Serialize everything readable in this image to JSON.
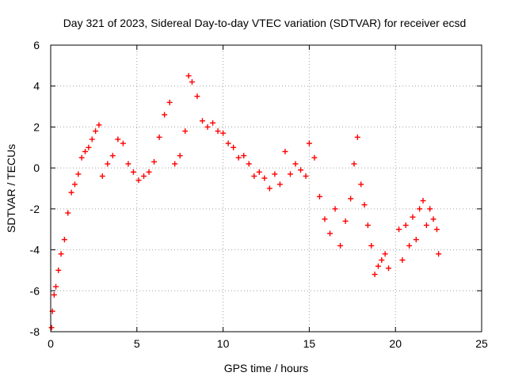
{
  "chart_data": {
    "type": "scatter",
    "title": "Day 321 of 2023, Sidereal Day-to-day VTEC variation (SDTVAR) for receiver ecsd",
    "xlabel": "GPS time / hours",
    "ylabel": "SDTVAR / TECUs",
    "xlim": [
      0,
      25
    ],
    "ylim": [
      -8,
      6
    ],
    "xticks": [
      0,
      5,
      10,
      15,
      20,
      25
    ],
    "yticks": [
      -8,
      -6,
      -4,
      -2,
      0,
      2,
      4,
      6
    ],
    "grid": true,
    "marker": "+",
    "series_color": "#ff0000",
    "series": [
      {
        "name": "SDTVAR",
        "x": [
          0.05,
          0.1,
          0.2,
          0.3,
          0.45,
          0.6,
          0.8,
          1.0,
          1.2,
          1.4,
          1.6,
          1.8,
          2.0,
          2.2,
          2.4,
          2.6,
          2.8,
          3.0,
          3.3,
          3.6,
          3.9,
          4.2,
          4.5,
          4.8,
          5.1,
          5.4,
          5.7,
          6.0,
          6.3,
          6.6,
          6.9,
          7.2,
          7.5,
          7.8,
          8.0,
          8.2,
          8.5,
          8.8,
          9.1,
          9.4,
          9.7,
          10.0,
          10.3,
          10.6,
          10.9,
          11.2,
          11.5,
          11.8,
          12.1,
          12.4,
          12.7,
          13.0,
          13.3,
          13.6,
          13.9,
          14.2,
          14.5,
          14.8,
          15.0,
          15.3,
          15.6,
          15.9,
          16.2,
          16.5,
          16.8,
          17.1,
          17.4,
          17.6,
          17.8,
          18.0,
          18.2,
          18.4,
          18.6,
          18.8,
          19.0,
          19.2,
          19.4,
          19.6,
          20.2,
          20.4,
          20.6,
          20.8,
          21.0,
          21.2,
          21.4,
          21.6,
          21.8,
          22.0,
          22.2,
          22.4,
          22.5
        ],
        "y": [
          -7.8,
          -7.0,
          -6.2,
          -5.8,
          -5.0,
          -4.2,
          -3.5,
          -2.2,
          -1.2,
          -0.8,
          -0.3,
          0.5,
          0.8,
          1.0,
          1.4,
          1.8,
          2.1,
          -0.4,
          0.2,
          0.6,
          1.4,
          1.2,
          0.2,
          -0.2,
          -0.6,
          -0.4,
          -0.2,
          0.3,
          1.5,
          2.6,
          3.2,
          0.2,
          0.6,
          1.8,
          4.5,
          4.2,
          3.5,
          2.3,
          2.0,
          2.2,
          1.8,
          1.7,
          1.2,
          1.0,
          0.5,
          0.6,
          0.2,
          -0.4,
          -0.2,
          -0.5,
          -1.0,
          -0.3,
          -0.8,
          0.8,
          -0.3,
          0.2,
          -0.1,
          -0.4,
          1.2,
          0.5,
          -1.4,
          -2.5,
          -3.2,
          -2.0,
          -3.8,
          -2.6,
          -1.5,
          0.2,
          1.5,
          -0.8,
          -1.8,
          -2.8,
          -3.8,
          -5.2,
          -4.8,
          -4.5,
          -4.2,
          -4.9,
          -3.0,
          -4.5,
          -2.8,
          -3.8,
          -2.4,
          -3.5,
          -2.0,
          -1.6,
          -2.8,
          -2.0,
          -2.5,
          -3.0,
          -4.2
        ]
      }
    ]
  }
}
